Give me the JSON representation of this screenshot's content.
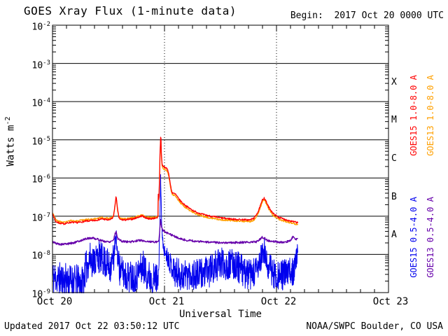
{
  "header": {
    "title": "GOES Xray Flux (1-minute data)",
    "begin_label": "Begin:",
    "begin_value": "2017 Oct 20 0000 UTC"
  },
  "footer": {
    "updated": "Updated 2017 Oct 22 03:50:12 UTC",
    "source": "NOAA/SWPC Boulder, CO USA"
  },
  "axes": {
    "x_label": "Universal Time",
    "y_label_base": "Watts m",
    "y_label_exp": "-2",
    "x_tick_labels": [
      "Oct 20",
      "Oct 21",
      "Oct 22",
      "Oct 23"
    ],
    "y_tick_exponents": [
      -2,
      -3,
      -4,
      -5,
      -6,
      -7,
      -8,
      -9
    ],
    "flare_classes": [
      {
        "label": "X",
        "log_mid": -3.5
      },
      {
        "label": "M",
        "log_mid": -4.5
      },
      {
        "label": "C",
        "log_mid": -5.5
      },
      {
        "label": "B",
        "log_mid": -6.5
      },
      {
        "label": "A",
        "log_mid": -7.5
      }
    ]
  },
  "legend": [
    {
      "label": "GOES15 1.0-8.0 A",
      "color": "#ff0000"
    },
    {
      "label": "GOES13 1.0-8.0 A",
      "color": "#ffa000"
    },
    {
      "label": "GOES15 0.5-4.0 A",
      "color": "#0000ee"
    },
    {
      "label": "GOES13 0.5-4.0 A",
      "color": "#6600aa"
    }
  ],
  "chart_data": {
    "type": "line",
    "title": "GOES Xray Flux (1-minute data)",
    "x_unit": "days since 2017 Oct 20 0000 UTC",
    "x_range": [
      0,
      3
    ],
    "y_log10_range": [
      -9,
      -2
    ],
    "y_unit": "Watts m^-2 (log10)",
    "grid": {
      "h_decade_lines": [
        -3,
        -4,
        -5,
        -6,
        -7,
        -8
      ],
      "v_day_lines": [
        1,
        2
      ]
    },
    "minor_x_tick_hours": 3,
    "notable_events": [
      {
        "t": 0.57,
        "peak_flux": 3e-07,
        "class": "B3"
      },
      {
        "t": 0.966,
        "peak_flux": 1.1e-05,
        "class": "M1"
      },
      {
        "t": 1.89,
        "peak_flux": 3e-07,
        "class": "B3"
      }
    ],
    "series": [
      {
        "name": "GOES15 0.5-4.0 A",
        "color": "#0000ee",
        "width": 1,
        "step": 0.0021,
        "noise_seed": 11,
        "noise_amp_anchors": [
          [
            0.0,
            0.45
          ],
          [
            0.27,
            0.45
          ],
          [
            0.295,
            0.45
          ],
          [
            0.55,
            0.42
          ],
          [
            0.556,
            0.2
          ],
          [
            0.575,
            0.25
          ],
          [
            0.6,
            0.42
          ],
          [
            0.93,
            0.42
          ],
          [
            0.95,
            0.25
          ],
          [
            0.958,
            0.1
          ],
          [
            0.976,
            0.1
          ],
          [
            1.0,
            0.18
          ],
          [
            1.06,
            0.3
          ],
          [
            1.1,
            0.42
          ],
          [
            2.15,
            0.4
          ],
          [
            2.19,
            0.25
          ]
        ],
        "anchors": [
          [
            0.0,
            -8.6
          ],
          [
            0.06,
            -8.64
          ],
          [
            0.12,
            -8.67
          ],
          [
            0.18,
            -8.7
          ],
          [
            0.24,
            -8.72
          ],
          [
            0.27,
            -8.72
          ],
          [
            0.295,
            -8.4
          ],
          [
            0.33,
            -8.12
          ],
          [
            0.37,
            -8.16
          ],
          [
            0.415,
            -8.05
          ],
          [
            0.45,
            -8.16
          ],
          [
            0.48,
            -8.22
          ],
          [
            0.51,
            -8.35
          ],
          [
            0.545,
            -8.1
          ],
          [
            0.558,
            -7.72
          ],
          [
            0.57,
            -7.6
          ],
          [
            0.58,
            -8.0
          ],
          [
            0.6,
            -8.4
          ],
          [
            0.65,
            -8.55
          ],
          [
            0.7,
            -8.58
          ],
          [
            0.75,
            -8.55
          ],
          [
            0.78,
            -8.4
          ],
          [
            0.81,
            -8.3
          ],
          [
            0.84,
            -8.5
          ],
          [
            0.88,
            -8.62
          ],
          [
            0.92,
            -8.65
          ],
          [
            0.948,
            -8.5
          ],
          [
            0.956,
            -7.6
          ],
          [
            0.962,
            -6.6
          ],
          [
            0.9655,
            -6.0
          ],
          [
            0.969,
            -6.45
          ],
          [
            0.974,
            -7.1
          ],
          [
            0.98,
            -7.55
          ],
          [
            0.99,
            -7.8
          ],
          [
            1.0,
            -7.92
          ],
          [
            1.03,
            -8.08
          ],
          [
            1.06,
            -8.28
          ],
          [
            1.1,
            -8.48
          ],
          [
            1.16,
            -8.55
          ],
          [
            1.22,
            -8.5
          ],
          [
            1.28,
            -8.55
          ],
          [
            1.34,
            -8.5
          ],
          [
            1.4,
            -8.45
          ],
          [
            1.47,
            -8.28
          ],
          [
            1.52,
            -8.22
          ],
          [
            1.57,
            -8.3
          ],
          [
            1.62,
            -8.24
          ],
          [
            1.67,
            -8.35
          ],
          [
            1.72,
            -8.5
          ],
          [
            1.78,
            -8.55
          ],
          [
            1.83,
            -8.4
          ],
          [
            1.865,
            -8.08
          ],
          [
            1.89,
            -7.95
          ],
          [
            1.915,
            -8.25
          ],
          [
            1.98,
            -8.5
          ],
          [
            2.04,
            -8.55
          ],
          [
            2.1,
            -8.5
          ],
          [
            2.15,
            -8.4
          ],
          [
            2.18,
            -8.1
          ],
          [
            2.19,
            -7.92
          ]
        ]
      },
      {
        "name": "GOES13 0.5-4.0 A",
        "color": "#6600aa",
        "width": 1.3,
        "step": 0.0031,
        "noise_seed": 5,
        "noise_amp": 0.028,
        "anchors": [
          [
            0.0,
            -7.66
          ],
          [
            0.03,
            -7.71
          ],
          [
            0.08,
            -7.74
          ],
          [
            0.14,
            -7.72
          ],
          [
            0.2,
            -7.69
          ],
          [
            0.26,
            -7.63
          ],
          [
            0.31,
            -7.58
          ],
          [
            0.36,
            -7.57
          ],
          [
            0.41,
            -7.61
          ],
          [
            0.46,
            -7.66
          ],
          [
            0.51,
            -7.67
          ],
          [
            0.545,
            -7.62
          ],
          [
            0.558,
            -7.45
          ],
          [
            0.57,
            -7.42
          ],
          [
            0.582,
            -7.58
          ],
          [
            0.62,
            -7.66
          ],
          [
            0.7,
            -7.67
          ],
          [
            0.78,
            -7.63
          ],
          [
            0.82,
            -7.65
          ],
          [
            0.88,
            -7.67
          ],
          [
            0.93,
            -7.67
          ],
          [
            0.95,
            -7.64
          ],
          [
            0.958,
            -7.32
          ],
          [
            0.965,
            -7.1
          ],
          [
            0.972,
            -7.26
          ],
          [
            0.985,
            -7.36
          ],
          [
            1.0,
            -7.4
          ],
          [
            1.03,
            -7.45
          ],
          [
            1.07,
            -7.5
          ],
          [
            1.12,
            -7.57
          ],
          [
            1.18,
            -7.62
          ],
          [
            1.25,
            -7.65
          ],
          [
            1.35,
            -7.67
          ],
          [
            1.45,
            -7.69
          ],
          [
            1.55,
            -7.69
          ],
          [
            1.65,
            -7.69
          ],
          [
            1.75,
            -7.68
          ],
          [
            1.82,
            -7.67
          ],
          [
            1.872,
            -7.55
          ],
          [
            1.89,
            -7.57
          ],
          [
            1.92,
            -7.64
          ],
          [
            2.0,
            -7.67
          ],
          [
            2.06,
            -7.69
          ],
          [
            2.12,
            -7.65
          ],
          [
            2.15,
            -7.53
          ],
          [
            2.165,
            -7.6
          ],
          [
            2.19,
            -7.6
          ]
        ]
      },
      {
        "name": "GOES13 1.0-8.0 A",
        "color": "#ffa000",
        "width": 1.3,
        "step": 0.0031,
        "noise_seed": 3,
        "noise_amp": 0.022,
        "anchors": [
          [
            0.0,
            -6.91
          ],
          [
            0.01,
            -6.96
          ],
          [
            0.03,
            -7.1
          ],
          [
            0.06,
            -7.14
          ],
          [
            0.1,
            -7.16
          ],
          [
            0.16,
            -7.12
          ],
          [
            0.22,
            -7.13
          ],
          [
            0.3,
            -7.09
          ],
          [
            0.38,
            -7.07
          ],
          [
            0.44,
            -7.03
          ],
          [
            0.5,
            -7.06
          ],
          [
            0.535,
            -7.03
          ],
          [
            0.545,
            -6.97
          ],
          [
            0.555,
            -6.81
          ],
          [
            0.566,
            -6.54
          ],
          [
            0.572,
            -6.6
          ],
          [
            0.58,
            -6.83
          ],
          [
            0.592,
            -7.0
          ],
          [
            0.605,
            -7.06
          ],
          [
            0.65,
            -7.07
          ],
          [
            0.72,
            -7.04
          ],
          [
            0.77,
            -7.0
          ],
          [
            0.8,
            -6.96
          ],
          [
            0.83,
            -7.01
          ],
          [
            0.87,
            -7.04
          ],
          [
            0.91,
            -7.02
          ],
          [
            0.935,
            -7.03
          ],
          [
            0.942,
            -6.97
          ],
          [
            0.9445,
            -6.46
          ],
          [
            0.9475,
            -6.58
          ],
          [
            0.951,
            -6.49
          ],
          [
            0.955,
            -6.09
          ],
          [
            0.96,
            -5.4
          ],
          [
            0.9655,
            -4.99
          ],
          [
            0.969,
            -5.03
          ],
          [
            0.972,
            -5.4
          ],
          [
            0.977,
            -5.63
          ],
          [
            0.982,
            -5.73
          ],
          [
            0.99,
            -5.75
          ],
          [
            1.01,
            -5.78
          ],
          [
            1.03,
            -5.84
          ],
          [
            1.045,
            -6.07
          ],
          [
            1.06,
            -6.35
          ],
          [
            1.068,
            -6.43
          ],
          [
            1.1,
            -6.48
          ],
          [
            1.13,
            -6.61
          ],
          [
            1.17,
            -6.73
          ],
          [
            1.22,
            -6.84
          ],
          [
            1.28,
            -6.94
          ],
          [
            1.35,
            -7.01
          ],
          [
            1.43,
            -7.06
          ],
          [
            1.52,
            -7.1
          ],
          [
            1.62,
            -7.12
          ],
          [
            1.7,
            -7.13
          ],
          [
            1.76,
            -7.14
          ],
          [
            1.8,
            -7.1
          ],
          [
            1.84,
            -6.91
          ],
          [
            1.875,
            -6.62
          ],
          [
            1.89,
            -6.57
          ],
          [
            1.905,
            -6.65
          ],
          [
            1.93,
            -6.81
          ],
          [
            1.97,
            -6.98
          ],
          [
            2.02,
            -7.08
          ],
          [
            2.08,
            -7.14
          ],
          [
            2.13,
            -7.18
          ],
          [
            2.19,
            -7.22
          ]
        ]
      },
      {
        "name": "GOES15 1.0-8.0 A",
        "color": "#ff0000",
        "width": 1.3,
        "step": 0.0031,
        "noise_seed": 7,
        "noise_amp": 0.022,
        "anchors": [
          [
            0.0,
            -6.95
          ],
          [
            0.01,
            -7.0
          ],
          [
            0.03,
            -7.14
          ],
          [
            0.06,
            -7.18
          ],
          [
            0.1,
            -7.2
          ],
          [
            0.16,
            -7.16
          ],
          [
            0.22,
            -7.17
          ],
          [
            0.3,
            -7.13
          ],
          [
            0.38,
            -7.11
          ],
          [
            0.44,
            -7.07
          ],
          [
            0.5,
            -7.1
          ],
          [
            0.535,
            -7.06
          ],
          [
            0.545,
            -7.0
          ],
          [
            0.555,
            -6.78
          ],
          [
            0.566,
            -6.5
          ],
          [
            0.572,
            -6.56
          ],
          [
            0.58,
            -6.8
          ],
          [
            0.592,
            -7.02
          ],
          [
            0.605,
            -7.09
          ],
          [
            0.65,
            -7.1
          ],
          [
            0.72,
            -7.07
          ],
          [
            0.77,
            -7.02
          ],
          [
            0.8,
            -6.99
          ],
          [
            0.83,
            -7.04
          ],
          [
            0.87,
            -7.07
          ],
          [
            0.91,
            -7.05
          ],
          [
            0.935,
            -7.06
          ],
          [
            0.942,
            -7.0
          ],
          [
            0.9445,
            -6.42
          ],
          [
            0.9475,
            -6.55
          ],
          [
            0.951,
            -6.45
          ],
          [
            0.955,
            -6.05
          ],
          [
            0.96,
            -5.35
          ],
          [
            0.9655,
            -4.93
          ],
          [
            0.969,
            -4.97
          ],
          [
            0.972,
            -5.35
          ],
          [
            0.977,
            -5.58
          ],
          [
            0.982,
            -5.68
          ],
          [
            0.99,
            -5.7
          ],
          [
            1.01,
            -5.73
          ],
          [
            1.03,
            -5.79
          ],
          [
            1.045,
            -6.02
          ],
          [
            1.06,
            -6.3
          ],
          [
            1.068,
            -6.38
          ],
          [
            1.1,
            -6.43
          ],
          [
            1.13,
            -6.56
          ],
          [
            1.17,
            -6.68
          ],
          [
            1.22,
            -6.79
          ],
          [
            1.28,
            -6.89
          ],
          [
            1.35,
            -6.96
          ],
          [
            1.43,
            -7.01
          ],
          [
            1.52,
            -7.05
          ],
          [
            1.62,
            -7.08
          ],
          [
            1.7,
            -7.09
          ],
          [
            1.76,
            -7.1
          ],
          [
            1.8,
            -7.05
          ],
          [
            1.84,
            -6.86
          ],
          [
            1.875,
            -6.57
          ],
          [
            1.89,
            -6.52
          ],
          [
            1.905,
            -6.6
          ],
          [
            1.93,
            -6.76
          ],
          [
            1.97,
            -6.93
          ],
          [
            2.02,
            -7.03
          ],
          [
            2.08,
            -7.09
          ],
          [
            2.13,
            -7.13
          ],
          [
            2.19,
            -7.17
          ]
        ]
      }
    ]
  }
}
